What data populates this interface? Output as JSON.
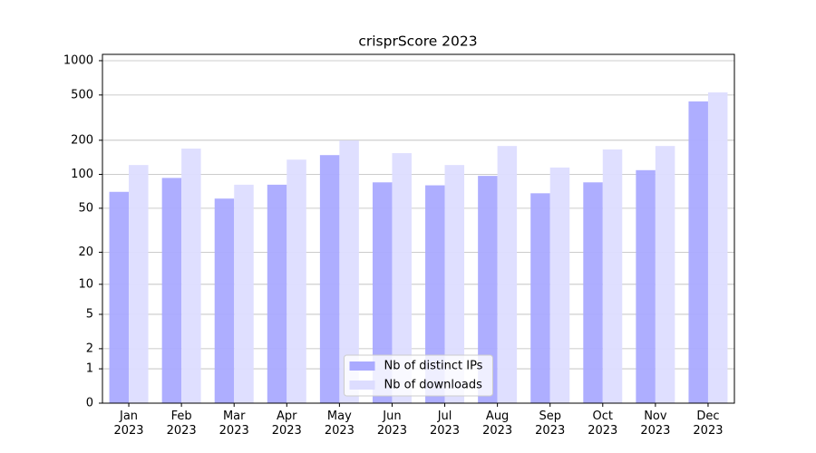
{
  "chart_data": {
    "type": "bar",
    "title": "crisprScore 2023",
    "categories": [
      "Jan\n2023",
      "Feb\n2023",
      "Mar\n2023",
      "Apr\n2023",
      "May\n2023",
      "Jun\n2023",
      "Jul\n2023",
      "Aug\n2023",
      "Sep\n2023",
      "Oct\n2023",
      "Nov\n2023",
      "Dec\n2023"
    ],
    "series": [
      {
        "name": "Nb of distinct IPs",
        "color": "#aaaaff",
        "values": [
          70,
          93,
          61,
          81,
          148,
          85,
          80,
          97,
          68,
          85,
          109,
          439
        ]
      },
      {
        "name": "Nb of downloads",
        "color": "#ddddff",
        "values": [
          121,
          169,
          81,
          135,
          199,
          154,
          121,
          178,
          115,
          166,
          178,
          527
        ]
      }
    ],
    "yscale": "log1p",
    "ylim": [
      0,
      1136
    ],
    "yticks": [
      0,
      1,
      2,
      5,
      10,
      20,
      50,
      100,
      200,
      500,
      1000
    ],
    "grid": true,
    "legend": "lower center"
  }
}
